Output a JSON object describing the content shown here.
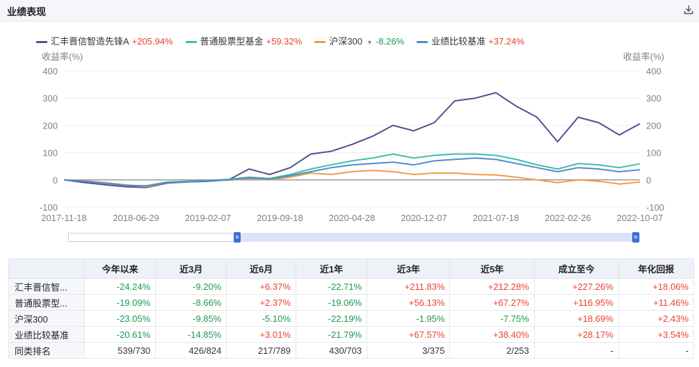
{
  "header": {
    "title": "业绩表现",
    "download_icon": "download-icon"
  },
  "legend": [
    {
      "name": "汇丰晋信智造先锋A",
      "value": "+205.94%",
      "color": "#4a5293",
      "sign": "pos"
    },
    {
      "name": "普通股票型基金",
      "value": "+59.32%",
      "color": "#3bbfa7",
      "sign": "pos"
    },
    {
      "name": "沪深300",
      "value": "-8.26%",
      "color": "#f39c4a",
      "sign": "neg",
      "dropdown_icon": "caret-down-icon"
    },
    {
      "name": "业绩比较基准",
      "value": "+37.24%",
      "color": "#4f8ccd",
      "sign": "pos"
    }
  ],
  "chart_data": {
    "type": "line",
    "ylabel_left": "收益率(%)",
    "ylabel_right": "收益率(%)",
    "yticks": [
      "400",
      "300",
      "200",
      "100",
      "0",
      "-100"
    ],
    "ylim": [
      -100,
      400
    ],
    "xticks": [
      "2017-11-18",
      "2018-06-29",
      "2019-02-07",
      "2019-09-18",
      "2020-04-28",
      "2020-12-07",
      "2021-07-18",
      "2022-02-26",
      "2022-10-07"
    ],
    "grid": true,
    "x": [
      "2017-11",
      "2018-03",
      "2018-06",
      "2018-10",
      "2019-01",
      "2019-03",
      "2019-06",
      "2019-09",
      "2019-12",
      "2020-02",
      "2020-04",
      "2020-06",
      "2020-07",
      "2020-09",
      "2020-12",
      "2021-02",
      "2021-03",
      "2021-05",
      "2021-07",
      "2021-09",
      "2021-11",
      "2021-12",
      "2022-02",
      "2022-03",
      "2022-04",
      "2022-06",
      "2022-08",
      "2022-10",
      "2022-11"
    ],
    "series": [
      {
        "name": "汇丰晋信智造先锋A",
        "color": "#4a5293",
        "values": [
          0,
          -10,
          -18,
          -25,
          -28,
          -12,
          -8,
          -5,
          0,
          40,
          20,
          45,
          95,
          105,
          130,
          160,
          200,
          180,
          210,
          290,
          300,
          320,
          270,
          230,
          140,
          230,
          210,
          165,
          206
        ]
      },
      {
        "name": "普通股票型基金",
        "color": "#3bbfa7",
        "values": [
          0,
          -5,
          -12,
          -20,
          -22,
          -8,
          -5,
          -2,
          2,
          10,
          5,
          20,
          40,
          55,
          70,
          80,
          95,
          80,
          90,
          95,
          95,
          90,
          75,
          55,
          40,
          60,
          55,
          45,
          59
        ]
      },
      {
        "name": "沪深300",
        "color": "#f39c4a",
        "values": [
          0,
          -3,
          -10,
          -18,
          -25,
          -10,
          -8,
          -2,
          -1,
          5,
          0,
          10,
          25,
          20,
          30,
          35,
          30,
          20,
          25,
          25,
          20,
          18,
          10,
          0,
          -10,
          0,
          -5,
          -15,
          -8
        ]
      },
      {
        "name": "业绩比较基准",
        "color": "#4f8ccd",
        "values": [
          0,
          -5,
          -12,
          -20,
          -22,
          -10,
          -7,
          -3,
          0,
          8,
          3,
          15,
          30,
          45,
          55,
          60,
          65,
          55,
          70,
          75,
          80,
          75,
          60,
          45,
          30,
          45,
          40,
          30,
          37
        ]
      }
    ]
  },
  "slider": {
    "handle_glyph": "≡"
  },
  "table": {
    "headers": [
      "",
      "今年以来",
      "近3月",
      "近6月",
      "近1年",
      "近3年",
      "近5年",
      "成立至今",
      "年化回报"
    ],
    "rows": [
      {
        "name": "汇丰晋信智...",
        "cells": [
          {
            "v": "-24.24%",
            "s": "neg"
          },
          {
            "v": "-9.20%",
            "s": "neg"
          },
          {
            "v": "+6.37%",
            "s": "pos"
          },
          {
            "v": "-22.71%",
            "s": "neg"
          },
          {
            "v": "+211.83%",
            "s": "pos"
          },
          {
            "v": "+212.28%",
            "s": "pos"
          },
          {
            "v": "+227.26%",
            "s": "pos"
          },
          {
            "v": "+18.06%",
            "s": "pos"
          }
        ]
      },
      {
        "name": "普通股票型...",
        "cells": [
          {
            "v": "-19.09%",
            "s": "neg"
          },
          {
            "v": "-8.66%",
            "s": "neg"
          },
          {
            "v": "+2.37%",
            "s": "pos"
          },
          {
            "v": "-19.06%",
            "s": "neg"
          },
          {
            "v": "+56.13%",
            "s": "pos"
          },
          {
            "v": "+67.27%",
            "s": "pos"
          },
          {
            "v": "+116.95%",
            "s": "pos"
          },
          {
            "v": "+11.46%",
            "s": "pos"
          }
        ]
      },
      {
        "name": "沪深300",
        "cells": [
          {
            "v": "-23.05%",
            "s": "neg"
          },
          {
            "v": "-9.85%",
            "s": "neg"
          },
          {
            "v": "-5.10%",
            "s": "neg"
          },
          {
            "v": "-22.19%",
            "s": "neg"
          },
          {
            "v": "-1.95%",
            "s": "neg"
          },
          {
            "v": "-7.75%",
            "s": "neg"
          },
          {
            "v": "+18.69%",
            "s": "pos"
          },
          {
            "v": "+2.43%",
            "s": "pos"
          }
        ]
      },
      {
        "name": "业绩比较基准",
        "cells": [
          {
            "v": "-20.61%",
            "s": "neg"
          },
          {
            "v": "-14.85%",
            "s": "neg"
          },
          {
            "v": "+3.01%",
            "s": "pos"
          },
          {
            "v": "-21.79%",
            "s": "neg"
          },
          {
            "v": "+67.57%",
            "s": "pos"
          },
          {
            "v": "+38.40%",
            "s": "pos"
          },
          {
            "v": "+28.17%",
            "s": "pos"
          },
          {
            "v": "+3.54%",
            "s": "pos"
          }
        ]
      },
      {
        "name": "同类排名",
        "cells": [
          {
            "v": "539/730",
            "s": "plain"
          },
          {
            "v": "426/824",
            "s": "plain"
          },
          {
            "v": "217/789",
            "s": "plain"
          },
          {
            "v": "430/703",
            "s": "plain"
          },
          {
            "v": "3/375",
            "s": "plain"
          },
          {
            "v": "2/253",
            "s": "plain"
          },
          {
            "v": "-",
            "s": "plain"
          },
          {
            "v": "-",
            "s": "plain"
          }
        ]
      }
    ]
  }
}
